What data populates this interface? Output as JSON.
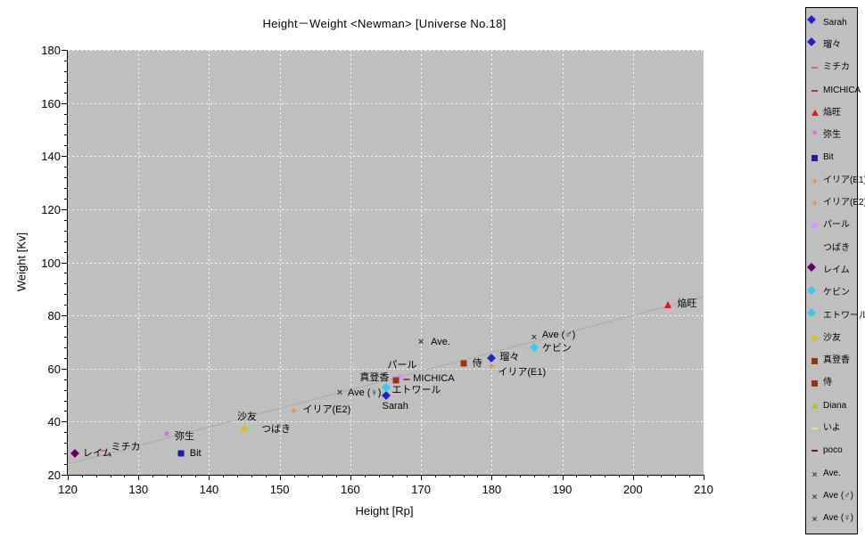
{
  "title": "Height－Weight <Newman> [Universe No.18]",
  "chart_data": {
    "type": "scatter",
    "title": "Height－Weight <Newman> [Universe No.18]",
    "xlabel": "Height [Rp]",
    "ylabel": "Weight [Kv]",
    "xlim": [
      120,
      210
    ],
    "ylim": [
      20,
      180
    ],
    "x_ticks": [
      120,
      130,
      140,
      150,
      160,
      170,
      180,
      190,
      200,
      210
    ],
    "y_ticks": [
      20,
      40,
      60,
      80,
      100,
      120,
      140,
      160,
      180
    ],
    "x_minor_step": 2,
    "y_minor_step": 4,
    "grid": true,
    "plot_bg": "#c0c0c0",
    "grid_color": "#ffffff",
    "legend_position": "right",
    "trendline": {
      "x1": 120,
      "y1": 24,
      "x2": 210,
      "y2": 87,
      "color": "#ababab"
    },
    "series": [
      {
        "id": "sarah",
        "name": "Sarah",
        "marker": "diamond",
        "color": "#2222cc",
        "x": 165,
        "y": 50,
        "label": {
          "dx": -4,
          "dy": 6,
          "align": "left"
        }
      },
      {
        "id": "ruru",
        "name": "瑠々",
        "marker": "diamond",
        "color": "#2222cc",
        "x": 180,
        "y": 64,
        "label": {
          "dx": 9,
          "dy": -7,
          "align": "left"
        }
      },
      {
        "id": "michika",
        "name": "ミチカ",
        "marker": "dash",
        "color": "#cc6699",
        "x": 125,
        "y": 29,
        "label": {
          "dx": 9,
          "dy": -10,
          "align": "left"
        }
      },
      {
        "id": "michica",
        "name": "MICHICA",
        "marker": "dash",
        "color": "#993366",
        "x": 168,
        "y": 56,
        "label": {
          "dx": 7,
          "dy": -7,
          "align": "left"
        }
      },
      {
        "id": "enou",
        "name": "焔旺",
        "marker": "triangle",
        "color": "#ee1111",
        "x": 205,
        "y": 84,
        "label": {
          "dx": 10,
          "dy": -7,
          "align": "left"
        }
      },
      {
        "id": "yayoi",
        "name": "弥生",
        "marker": "asterisk",
        "color": "#dd66dd",
        "x": 134,
        "y": 34,
        "label": {
          "dx": 9,
          "dy": -7,
          "align": "left"
        }
      },
      {
        "id": "bit",
        "name": "Bit",
        "marker": "square",
        "color": "#202099",
        "x": 136,
        "y": 28,
        "label": {
          "dx": 10,
          "dy": -6,
          "align": "left"
        }
      },
      {
        "id": "iria-e1",
        "name": "イリア(E1)",
        "marker": "plus",
        "color": "#ee8833",
        "x": 180,
        "y": 61,
        "label": {
          "dx": 7,
          "dy": 1,
          "align": "left"
        }
      },
      {
        "id": "iria-e2",
        "name": "イリア(E2)",
        "marker": "plus",
        "color": "#ee8833",
        "x": 152,
        "y": 44,
        "label": {
          "dx": 10,
          "dy": -7,
          "align": "left"
        }
      },
      {
        "id": "pearl",
        "name": "パール",
        "marker": "circle",
        "color": "#cc99ff",
        "x": 167,
        "y": 57,
        "label": {
          "dx": -14,
          "dy": -19,
          "align": "left"
        }
      },
      {
        "id": "tsubaki",
        "name": "つばき",
        "marker": "x",
        "color": "#88dd88",
        "x": 146,
        "y": 37,
        "label": {
          "dx": 11,
          "dy": -6,
          "align": "left"
        }
      },
      {
        "id": "reimu",
        "name": "レイム",
        "marker": "diamond",
        "color": "#660066",
        "x": 121,
        "y": 28,
        "label": {
          "dx": 9,
          "dy": -6,
          "align": "left"
        }
      },
      {
        "id": "kevin",
        "name": "ケビン",
        "marker": "diamond",
        "color": "#33ccee",
        "x": 186,
        "y": 68,
        "label": {
          "dx": 9,
          "dy": -5,
          "align": "left"
        }
      },
      {
        "id": "etoile",
        "name": "エトワール",
        "marker": "diamond",
        "color": "#33ccee",
        "x": 165,
        "y": 53,
        "label": {
          "dx": 7,
          "dy": -3,
          "align": "left"
        }
      },
      {
        "id": "sayu",
        "name": "沙友",
        "marker": "circle",
        "color": "#ddbb33",
        "x": 145,
        "y": 37,
        "label": {
          "dx": -8,
          "dy": -20,
          "align": "left"
        }
      },
      {
        "id": "matoka",
        "name": "真登香",
        "marker": "square",
        "color": "#993311",
        "x": 166.5,
        "y": 55.5,
        "label": {
          "dx": -8,
          "dy": -9,
          "align": "right"
        }
      },
      {
        "id": "samurai",
        "name": "侍",
        "marker": "square",
        "color": "#993311",
        "x": 176,
        "y": 62,
        "label": {
          "dx": 10,
          "dy": -6,
          "align": "left"
        }
      },
      {
        "id": "diana",
        "name": "Diana",
        "marker": "triangle",
        "color": "#aacc22",
        "visible": false
      },
      {
        "id": "iyo",
        "name": "いよ",
        "marker": "dash",
        "color": "#eede88",
        "visible": false
      },
      {
        "id": "poco",
        "name": "poco",
        "marker": "dash",
        "color": "#801010",
        "visible": false
      },
      {
        "id": "ave",
        "name": "Ave.",
        "marker": "x",
        "color": "#404040",
        "x": 170,
        "y": 70,
        "label": {
          "dx": 11,
          "dy": -6,
          "align": "left"
        }
      },
      {
        "id": "ave-male",
        "name": "Ave (♂)",
        "marker": "x",
        "color": "#404040",
        "x": 186,
        "y": 71.5,
        "label": {
          "dx": 9,
          "dy": -9,
          "align": "left"
        }
      },
      {
        "id": "ave-female",
        "name": "Ave (♀)",
        "marker": "x",
        "color": "#404040",
        "x": 158.5,
        "y": 51,
        "label": {
          "dx": 9,
          "dy": -6,
          "align": "left"
        }
      }
    ]
  }
}
